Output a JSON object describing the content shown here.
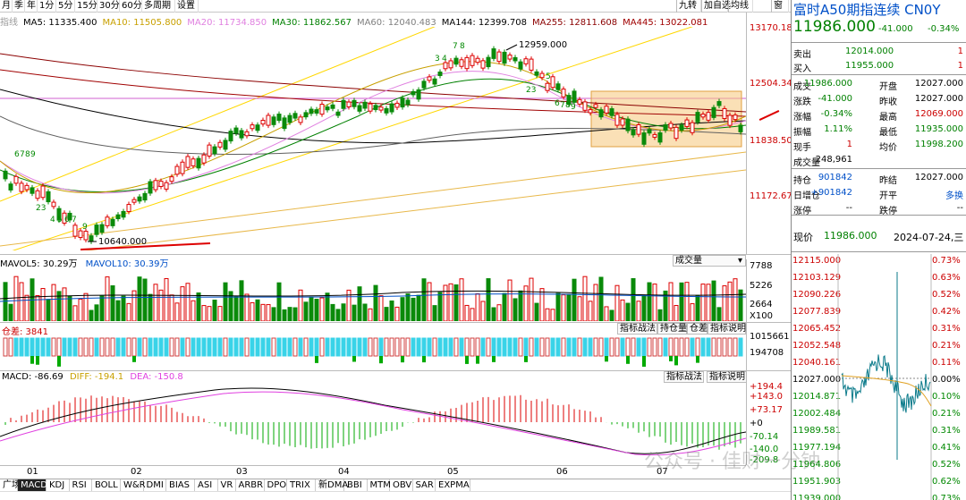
{
  "toolbar": {
    "periods": [
      "月",
      "季",
      "年",
      "1分",
      "5分",
      "15分",
      "30分",
      "60分",
      "多周期",
      "设置"
    ],
    "right_buttons": [
      "九转",
      "加自选",
      "均线",
      "窗"
    ]
  },
  "ma_legend": [
    {
      "text": "指线",
      "color": "#999999"
    },
    {
      "text": "MA5: 11335.400",
      "color": "#000000"
    },
    {
      "text": "MA10: 11505.800",
      "color": "#c8a000"
    },
    {
      "text": "MA20: 11734.850",
      "color": "#e080e0"
    },
    {
      "text": "MA30: 11862.567",
      "color": "#008000"
    },
    {
      "text": "MA60: 12040.483",
      "color": "#808080"
    },
    {
      "text": "MA144: 12399.708",
      "color": "#000000"
    },
    {
      "text": "MA255: 12811.608",
      "color": "#8b0000"
    },
    {
      "text": "MA445: 13022.081",
      "color": "#a00000"
    }
  ],
  "price_axis": [
    "13170.18",
    "12504.34",
    "11838.50",
    "11172.67"
  ],
  "annotations": {
    "high": "12959.000",
    "low": "10640.000"
  },
  "volume": {
    "mavol5": "MAVOL5: 30.29万",
    "mavol10": "MAVOL10: 30.39万",
    "selector": "成交量",
    "axis": [
      "7788",
      "5226",
      "2664",
      "X100"
    ]
  },
  "oi": {
    "label": "仓差: 3841",
    "buttons": [
      "指标战法",
      "持仓量",
      "仓差",
      "指标说明"
    ],
    "axis": [
      "1015661",
      "194708"
    ]
  },
  "macd": {
    "macd": "MACD: -86.69",
    "diff": "DIFF: -194.1",
    "dea": "DEA: -150.8",
    "buttons": [
      "指标战法",
      "指标说明"
    ],
    "axis": [
      "+194.4",
      "+143.0",
      "+73.17",
      "+0",
      "-70.14",
      "-140.0",
      "-209.8"
    ]
  },
  "dates": [
    "01",
    "02",
    "03",
    "04",
    "05",
    "06",
    "07"
  ],
  "tabs": [
    "广场",
    "MACD",
    "KDJ",
    "RSI",
    "BOLL",
    "W&R",
    "DMI",
    "BIAS",
    "ASI",
    "VR",
    "ARBR",
    "DPO",
    "TRIX",
    "新DMA",
    "BBI",
    "MTM",
    "OBV",
    "SAR",
    "EXPMA"
  ],
  "quote": {
    "title": "富时A50期指连续 CN0Y",
    "last": "11986.000",
    "change": "-41.000",
    "pct": "-0.34%",
    "sell": {
      "label": "卖出",
      "price": "12014.000",
      "vol": "1"
    },
    "buy": {
      "label": "买入",
      "price": "11955.000",
      "vol": "1"
    },
    "rows": [
      {
        "l1": "成交",
        "v1": "11986.000",
        "l2": "开盘",
        "v2": "12027.000",
        "c1": "green",
        "c2": "black"
      },
      {
        "l1": "涨跌",
        "v1": "-41.000",
        "l2": "昨收",
        "v2": "12027.000",
        "c1": "green",
        "c2": "black"
      },
      {
        "l1": "涨幅",
        "v1": "-0.34%",
        "l2": "最高",
        "v2": "12069.000",
        "c1": "green",
        "c2": "red"
      },
      {
        "l1": "振幅",
        "v1": "1.11%",
        "l2": "最低",
        "v2": "11935.000",
        "c1": "green",
        "c2": "green"
      },
      {
        "l1": "现手",
        "v1": "1",
        "l2": "均价",
        "v2": "11998.200",
        "c1": "red",
        "c2": "green"
      },
      {
        "l1": "成交量",
        "v1": "248,961",
        "l2": "",
        "v2": "",
        "c1": "black",
        "c2": "black"
      }
    ],
    "rows2": [
      {
        "l1": "持仓",
        "v1": "901842",
        "l2": "昨结",
        "v2": "12027.000",
        "c1": "blue",
        "c2": "black"
      },
      {
        "l1": "日增仓",
        "v1": "+901842",
        "l2": "开平",
        "v2": "多换",
        "c1": "blue",
        "c2": "blue"
      },
      {
        "l1": "涨停",
        "v1": "--",
        "l2": "跌停",
        "v2": "--",
        "c1": "black",
        "c2": "black"
      }
    ],
    "realtime": {
      "label": "现价",
      "price": "11986.000",
      "date": "2024-07-24,三"
    },
    "rt_left_axis": [
      "12115.000",
      "12103.129",
      "12090.226",
      "12077.839",
      "12065.452",
      "12052.548",
      "12040.161",
      "12027.000",
      "12014.871",
      "12002.484",
      "11989.581",
      "11977.194",
      "11964.806",
      "11951.903",
      "11939.000"
    ],
    "rt_right_axis": [
      "0.73%",
      "0.63%",
      "0.52%",
      "0.42%",
      "0.31%",
      "0.21%",
      "0.11%",
      "0.00%",
      "0.10%",
      "0.21%",
      "0.31%",
      "0.41%",
      "0.52%",
      "0.62%",
      "0.73%"
    ]
  },
  "watermark": "公众号 · 佳财一分钟"
}
